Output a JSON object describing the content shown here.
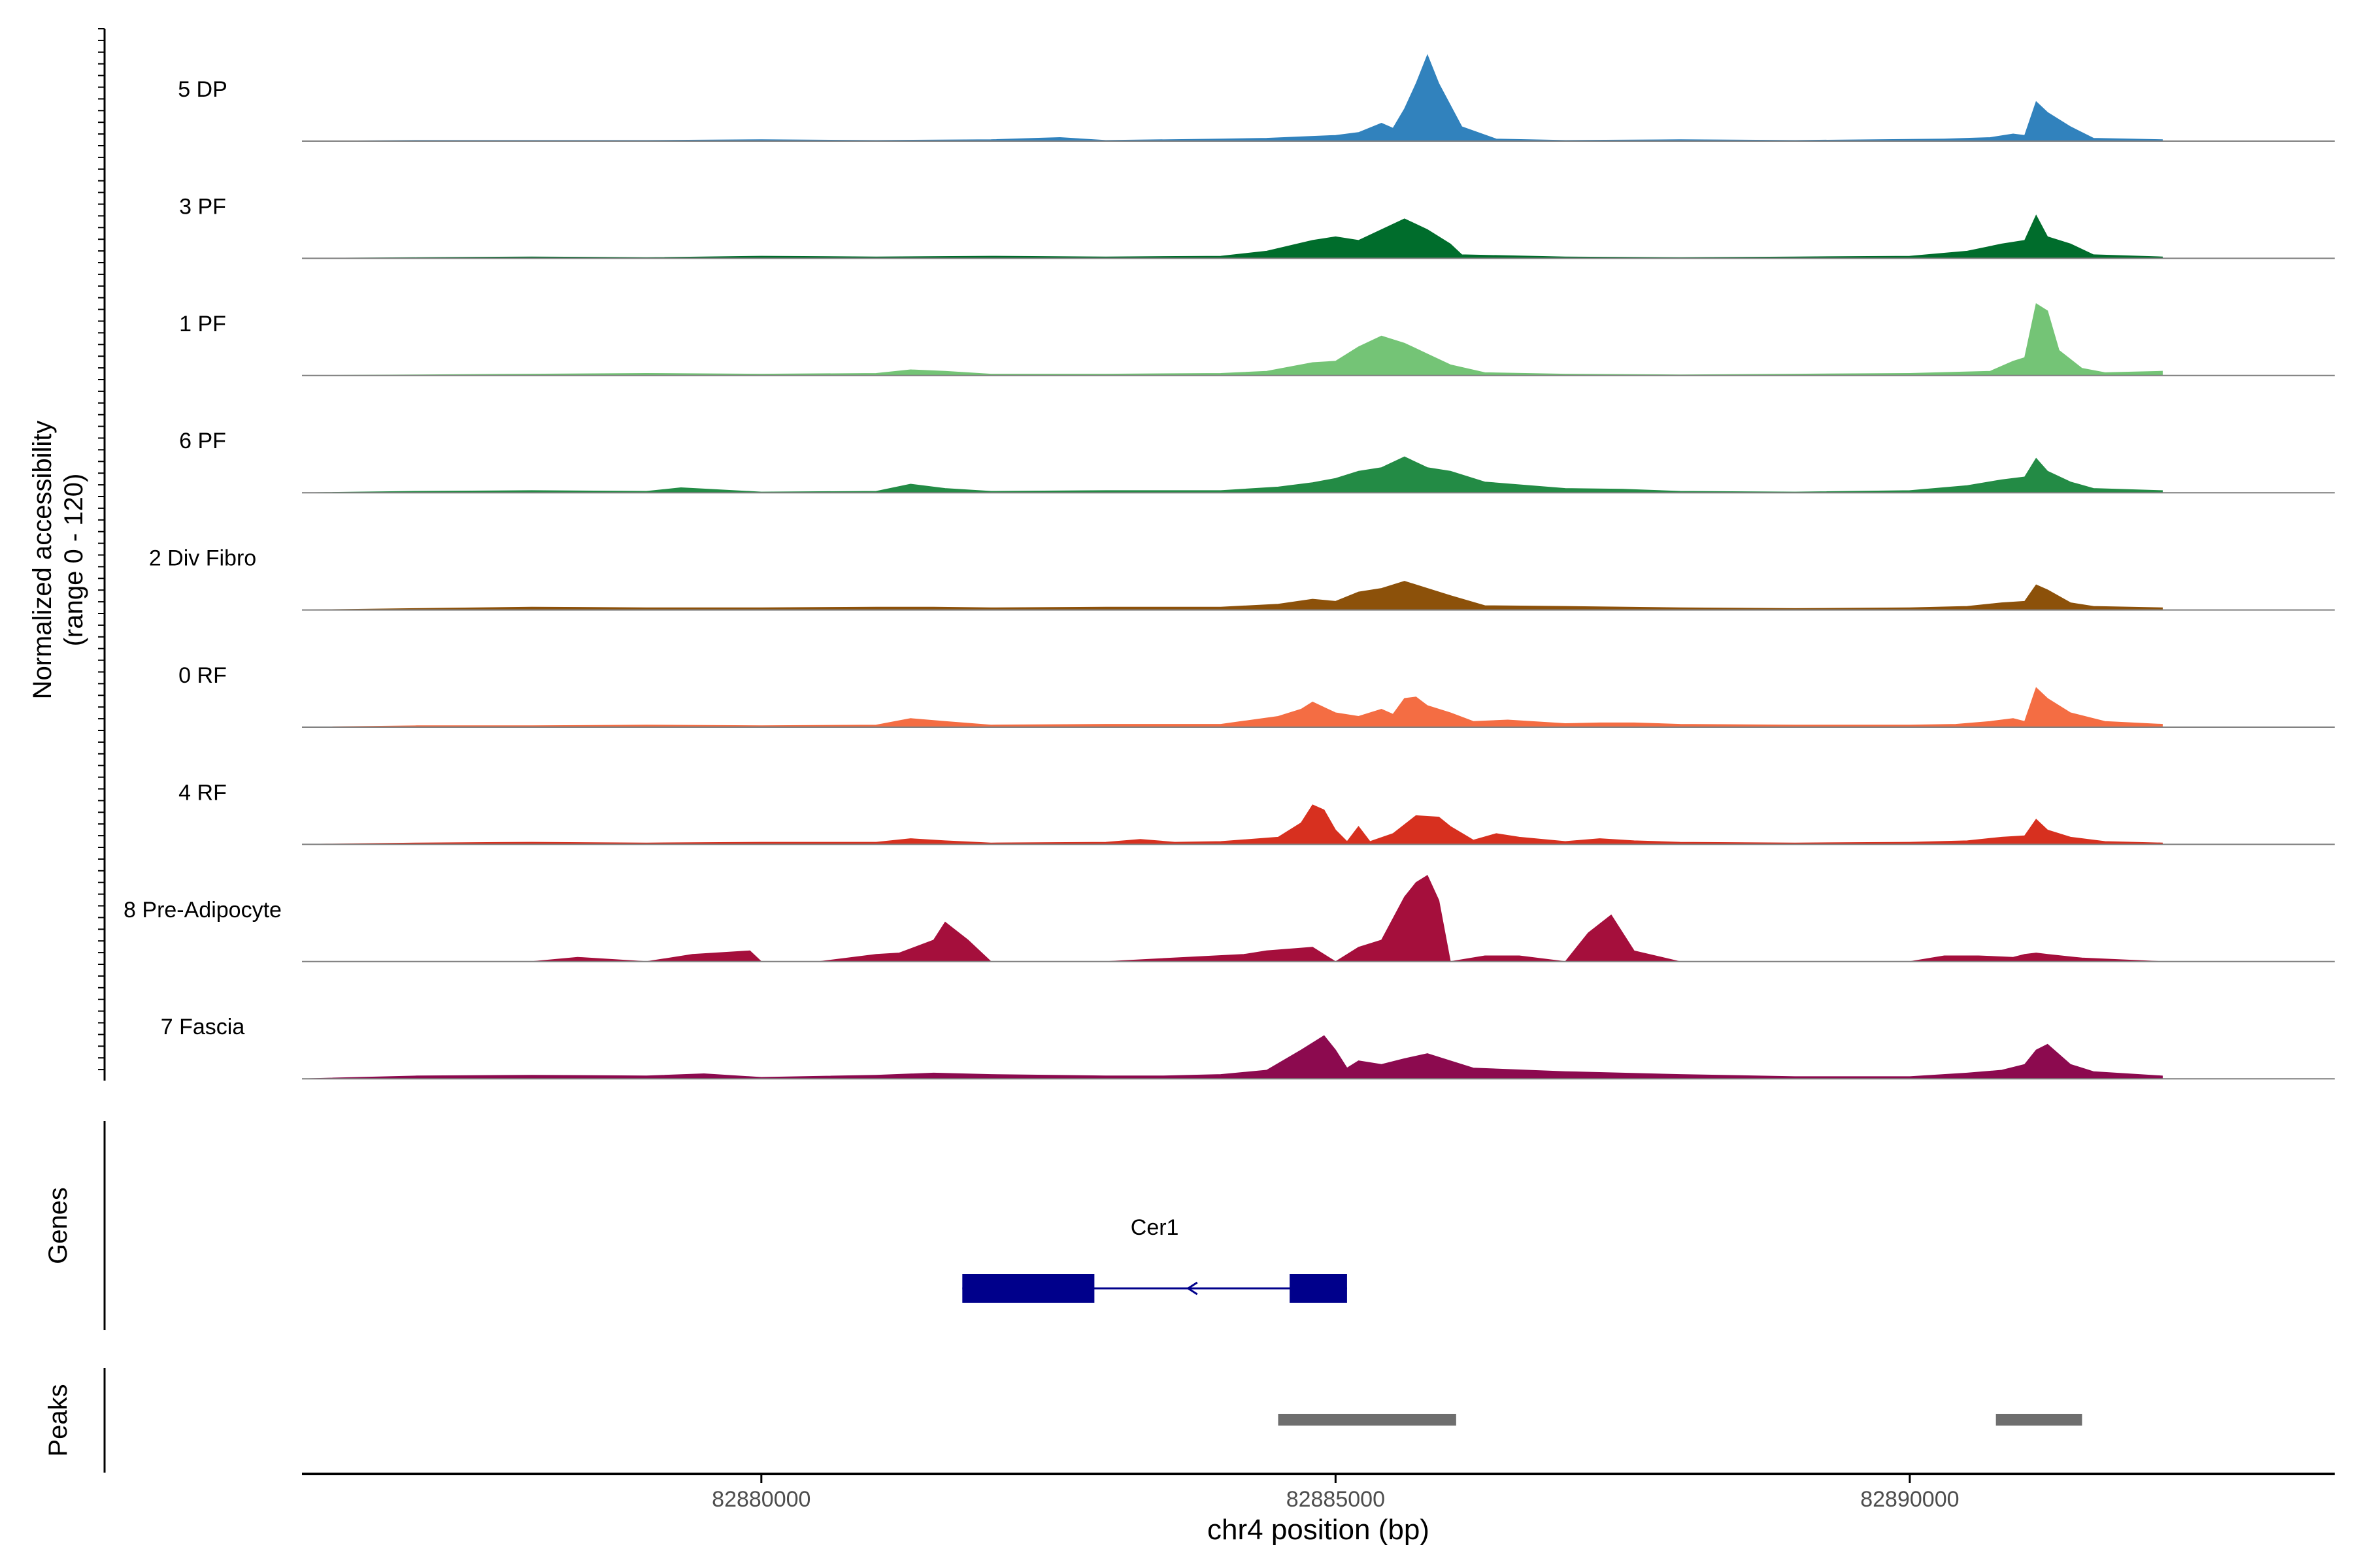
{
  "chart_data": {
    "type": "area",
    "ylabel_line1": "Normalized accessibility",
    "ylabel_line2": "(range 0 - 120)",
    "ylim": [
      0,
      120
    ],
    "xlabel": "chr4 position (bp)",
    "xlim": [
      82876000,
      82893700
    ],
    "x_ticks": [
      82880000,
      82885000,
      82890000
    ],
    "x_tick_labels": [
      "82880000",
      "82885000",
      "82890000"
    ],
    "tracks": [
      {
        "name": "5 DP",
        "color": "#3182bd",
        "x": [
          82876000,
          82877000,
          82878000,
          82879000,
          82880000,
          82881000,
          82882000,
          82882600,
          82883000,
          82884000,
          82884400,
          82884700,
          82885000,
          82885200,
          82885400,
          82885500,
          82885600,
          82885700,
          82885800,
          82885900,
          82886100,
          82886400,
          82887000,
          82888000,
          82889000,
          82890300,
          82890700,
          82890900,
          82891000,
          82891100,
          82891200,
          82891300,
          82891400,
          82891600,
          82892200
        ],
        "y": [
          0,
          1,
          1,
          1,
          2,
          1,
          2,
          5,
          1,
          3,
          4,
          6,
          8,
          12,
          25,
          18,
          45,
          80,
          120,
          80,
          20,
          3,
          1,
          2,
          1,
          3,
          5,
          10,
          8,
          55,
          40,
          30,
          20,
          4,
          2
        ]
      },
      {
        "name": "3 PF",
        "color": "#006d2c",
        "x": [
          82876000,
          82877000,
          82878000,
          82879000,
          82880000,
          82881000,
          82882000,
          82883000,
          82884000,
          82884400,
          82884800,
          82885000,
          82885200,
          82885400,
          82885600,
          82885800,
          82886000,
          82886100,
          82887000,
          82888000,
          82889000,
          82890000,
          82890500,
          82890800,
          82891000,
          82891100,
          82891200,
          82891400,
          82891600,
          82892200
        ],
        "y": [
          0,
          1,
          2,
          1,
          3,
          2,
          3,
          2,
          3,
          10,
          25,
          30,
          25,
          40,
          55,
          40,
          20,
          5,
          2,
          1,
          2,
          3,
          10,
          20,
          25,
          60,
          30,
          20,
          5,
          2
        ]
      },
      {
        "name": "1 PF",
        "color": "#74c476",
        "x": [
          82876000,
          82877000,
          82878000,
          82879000,
          82880000,
          82881000,
          82881300,
          82881600,
          82882000,
          82883000,
          82884000,
          82884400,
          82884800,
          82885000,
          82885200,
          82885400,
          82885600,
          82885800,
          82886000,
          82886300,
          82887000,
          82888000,
          82889000,
          82890000,
          82890700,
          82890900,
          82891000,
          82891100,
          82891200,
          82891300,
          82891500,
          82891700,
          82892200
        ],
        "y": [
          0,
          1,
          2,
          3,
          2,
          3,
          8,
          6,
          2,
          2,
          3,
          6,
          18,
          20,
          40,
          55,
          45,
          30,
          15,
          4,
          2,
          1,
          2,
          3,
          6,
          20,
          25,
          100,
          90,
          35,
          10,
          4,
          6
        ]
      },
      {
        "name": "6 PF",
        "color": "#238b45",
        "x": [
          82876000,
          82877000,
          82878000,
          82879000,
          82879300,
          82880000,
          82881000,
          82881300,
          82881600,
          82882000,
          82883000,
          82884000,
          82884500,
          82884800,
          82885000,
          82885200,
          82885400,
          82885600,
          82885800,
          82886000,
          82886300,
          82887000,
          82887500,
          82888000,
          82889000,
          82890000,
          82890500,
          82890800,
          82891000,
          82891100,
          82891200,
          82891400,
          82891600,
          82892200
        ],
        "y": [
          0,
          2,
          3,
          2,
          7,
          1,
          2,
          12,
          6,
          2,
          3,
          3,
          8,
          14,
          20,
          30,
          35,
          50,
          35,
          30,
          15,
          6,
          5,
          2,
          1,
          3,
          10,
          18,
          22,
          48,
          30,
          15,
          6,
          3
        ]
      },
      {
        "name": "2 Div Fibro",
        "color": "#8c510a",
        "x": [
          82876000,
          82877000,
          82878000,
          82879000,
          82880000,
          82881000,
          82881500,
          82882000,
          82883000,
          82884000,
          82884500,
          82884800,
          82885000,
          82885200,
          82885400,
          82885600,
          82885800,
          82886000,
          82886300,
          82887000,
          82888000,
          82889000,
          82890000,
          82890500,
          82890800,
          82891000,
          82891100,
          82891200,
          82891400,
          82891600,
          82892200
        ],
        "y": [
          0,
          2,
          4,
          3,
          3,
          4,
          4,
          3,
          4,
          4,
          8,
          15,
          12,
          25,
          30,
          40,
          30,
          20,
          6,
          5,
          3,
          2,
          3,
          5,
          10,
          12,
          35,
          28,
          10,
          5,
          3
        ]
      },
      {
        "name": "0 RF",
        "color": "#f46d43",
        "x": [
          82876000,
          82877000,
          82878000,
          82879000,
          82880000,
          82881000,
          82881300,
          82881600,
          82882000,
          82883000,
          82884000,
          82884500,
          82884700,
          82884800,
          82885000,
          82885200,
          82885400,
          82885500,
          82885600,
          82885700,
          82885800,
          82886000,
          82886200,
          82886500,
          82887000,
          82887300,
          82887600,
          82888000,
          82889000,
          82890000,
          82890400,
          82890700,
          82890900,
          82891000,
          82891100,
          82891200,
          82891400,
          82891700,
          82892200
        ],
        "y": [
          0,
          2,
          2,
          3,
          2,
          3,
          12,
          8,
          3,
          4,
          4,
          15,
          25,
          35,
          20,
          15,
          25,
          18,
          40,
          42,
          30,
          20,
          8,
          10,
          5,
          6,
          6,
          4,
          3,
          3,
          4,
          8,
          12,
          8,
          55,
          40,
          20,
          8,
          4
        ]
      },
      {
        "name": "4 RF",
        "color": "#d7301f",
        "x": [
          82876000,
          82877000,
          82878000,
          82879000,
          82880000,
          82881000,
          82881300,
          82881600,
          82882000,
          82883000,
          82883300,
          82883600,
          82884000,
          82884500,
          82884700,
          82884800,
          82884900,
          82885000,
          82885100,
          82885200,
          82885300,
          82885500,
          82885700,
          82885900,
          82886000,
          82886200,
          82886400,
          82886600,
          82887000,
          82887300,
          82887600,
          82888000,
          82889000,
          82890000,
          82890500,
          82890800,
          82891000,
          82891100,
          82891200,
          82891400,
          82891700,
          82892200
        ],
        "y": [
          0,
          2,
          3,
          2,
          3,
          3,
          8,
          5,
          2,
          3,
          7,
          3,
          4,
          10,
          30,
          55,
          48,
          20,
          4,
          25,
          4,
          15,
          40,
          38,
          25,
          6,
          15,
          10,
          4,
          8,
          5,
          3,
          2,
          3,
          5,
          10,
          12,
          35,
          20,
          10,
          4,
          2
        ]
      },
      {
        "name": "8 Pre-Adipocyte",
        "color": "#a50f3c",
        "x": [
          82876000,
          82877000,
          82878000,
          82878400,
          82879000,
          82879400,
          82879900,
          82880000,
          82880500,
          82881000,
          82881200,
          82881500,
          82881600,
          82881800,
          82882000,
          82883000,
          82883700,
          82884200,
          82884400,
          82884800,
          82885000,
          82885200,
          82885400,
          82885600,
          82885700,
          82885800,
          82885900,
          82886000,
          82886300,
          82886600,
          82887000,
          82887200,
          82887400,
          82887600,
          82888000,
          82889000,
          82890000,
          82890300,
          82890600,
          82890900,
          82891000,
          82891100,
          82891200,
          82891500,
          82892200
        ],
        "y": [
          0,
          0,
          0,
          6,
          0,
          10,
          15,
          0,
          0,
          10,
          12,
          30,
          55,
          30,
          0,
          0,
          6,
          10,
          15,
          20,
          0,
          20,
          30,
          90,
          110,
          120,
          85,
          0,
          8,
          8,
          0,
          40,
          65,
          15,
          0,
          0,
          0,
          8,
          8,
          6,
          10,
          12,
          10,
          5,
          0
        ]
      },
      {
        "name": "7 Fascia",
        "color": "#8c0a4f",
        "x": [
          82876000,
          82877000,
          82878000,
          82879000,
          82879500,
          82880000,
          82881000,
          82881500,
          82882000,
          82883000,
          82883500,
          82884000,
          82884400,
          82884700,
          82884900,
          82885000,
          82885100,
          82885200,
          82885400,
          82885600,
          82885800,
          82886000,
          82886200,
          82887000,
          82888000,
          82889000,
          82890000,
          82890500,
          82890800,
          82891000,
          82891100,
          82891200,
          82891400,
          82891600,
          82892200
        ],
        "y": [
          0,
          4,
          5,
          4,
          7,
          2,
          5,
          8,
          6,
          4,
          4,
          6,
          12,
          40,
          60,
          40,
          15,
          25,
          20,
          28,
          35,
          25,
          15,
          10,
          6,
          3,
          3,
          8,
          12,
          20,
          40,
          48,
          20,
          10,
          4
        ]
      }
    ],
    "genes": [
      {
        "name": "Cer1",
        "start": 82881750,
        "end": 82885100,
        "strand": "-",
        "exons": [
          [
            82881750,
            82882900
          ],
          [
            82884600,
            82885100
          ]
        ]
      }
    ],
    "genes_label": "Genes",
    "peaks_label": "Peaks",
    "peaks": [
      [
        82884500,
        82886050
      ],
      [
        82890750,
        82891500
      ]
    ]
  }
}
